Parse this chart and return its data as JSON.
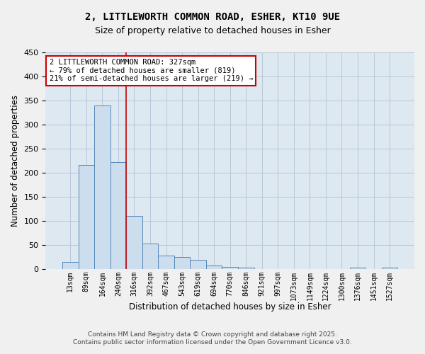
{
  "title_line1": "2, LITTLEWORTH COMMON ROAD, ESHER, KT10 9UE",
  "title_line2": "Size of property relative to detached houses in Esher",
  "xlabel": "Distribution of detached houses by size in Esher",
  "ylabel": "Number of detached properties",
  "bar_labels": [
    "13sqm",
    "89sqm",
    "164sqm",
    "240sqm",
    "316sqm",
    "392sqm",
    "467sqm",
    "543sqm",
    "619sqm",
    "694sqm",
    "770sqm",
    "846sqm",
    "921sqm",
    "997sqm",
    "1073sqm",
    "1149sqm",
    "1224sqm",
    "1300sqm",
    "1376sqm",
    "1451sqm",
    "1527sqm"
  ],
  "bar_values": [
    15,
    216,
    340,
    222,
    111,
    54,
    28,
    26,
    19,
    8,
    5,
    4,
    1,
    1,
    1,
    0,
    0,
    0,
    3,
    0,
    3
  ],
  "bar_color": "#ccdded",
  "bar_edge_color": "#5588bb",
  "vline_index": 4,
  "vline_color": "#cc0000",
  "annotation_text": "2 LITTLEWORTH COMMON ROAD: 327sqm\n← 79% of detached houses are smaller (819)\n21% of semi-detached houses are larger (219) →",
  "annotation_box_color": "#ffffff",
  "annotation_box_edge": "#cc0000",
  "ylim": [
    0,
    450
  ],
  "yticks": [
    0,
    50,
    100,
    150,
    200,
    250,
    300,
    350,
    400,
    450
  ],
  "grid_color": "#b8c8d8",
  "bg_color": "#dde8f0",
  "fig_bg_color": "#f0f0f0",
  "footer_line1": "Contains HM Land Registry data © Crown copyright and database right 2025.",
  "footer_line2": "Contains public sector information licensed under the Open Government Licence v3.0."
}
